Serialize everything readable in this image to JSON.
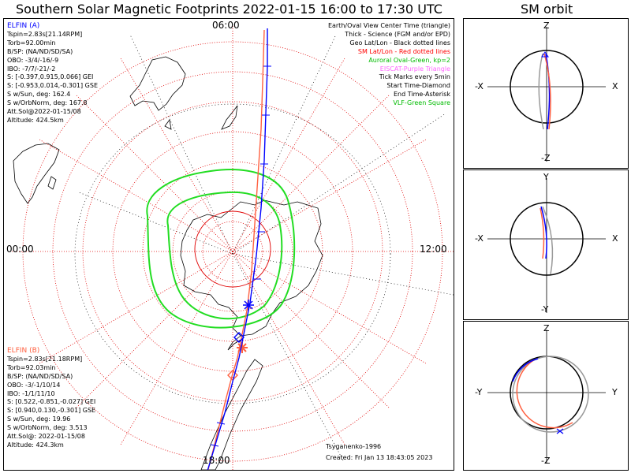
{
  "title": "Southern Solar Magnetic Footprints 2022-01-15 16:00 to 17:30 UTC",
  "orbit_title": "SM orbit",
  "clock_labels": {
    "top": "06:00",
    "bottom": "18:00",
    "left": "00:00",
    "right": "12:00"
  },
  "elfin_a": {
    "name": "ELFIN (A)",
    "color": "#0000ff",
    "lines": [
      "Tspin=2.83s[21.14RPM]",
      "Torb=92.00min",
      "B/SP: (NA/ND/SD/SA)",
      "OBO: -3/4/-16/-9",
      "IBO: -7/7/-21/-2",
      "S: [-0.397,0.915,0.066] GEI",
      "S: [-0.953,0.014,-0.301] GSE",
      "S w/Sun, deg: 162.4",
      "S w/OrbNorm, deg: 167.8",
      "Att.Sol@2022-01-15/08",
      "Altitude: 424.5km"
    ]
  },
  "elfin_b": {
    "name": "ELFIN (B)",
    "color": "#ff6040",
    "lines": [
      "Tspin=2.83s[21.18RPM]",
      "Torb=92.03min",
      "B/SP: (NA/ND/SD/SA)",
      "OBO: -3/-1/10/14",
      "IBO: -1/1/11/10",
      "S: [0.522,-0.851,-0.027] GEI",
      "S: [0.940,0.130,-0.301] GSE",
      "S w/Sun, deg: 19.96",
      "S w/OrbNorm, deg: 3.513",
      "Att.Sol@: 2022-01-15/08",
      "Altitude: 424.3km"
    ]
  },
  "legend": [
    {
      "text": "Earth/Oval View Center Time (triangle)",
      "color": "#000000"
    },
    {
      "text": "Thick - Science (FGM and/or EPD)",
      "color": "#000000"
    },
    {
      "text": "Geo Lat/Lon - Black dotted lines",
      "color": "#000000"
    },
    {
      "text": "SM Lat/Lon - Red dotted lines",
      "color": "#ff0000"
    },
    {
      "text": "Auroral Oval-Green, kp=2",
      "color": "#00bb00"
    },
    {
      "text": "EISCAT-Purple Triangle",
      "color": "#ff66ff"
    },
    {
      "text": "Tick Marks every 5min",
      "color": "#000000"
    },
    {
      "text": "Start Time-Diamond",
      "color": "#000000"
    },
    {
      "text": "End Time-Asterisk",
      "color": "#000000"
    },
    {
      "text": "VLF-Green Square",
      "color": "#00bb00"
    }
  ],
  "footer": {
    "model": "Tsyganenko-1996",
    "created": "Created: Fri Jan 13 18:43:05 2023"
  },
  "orbit_panels": [
    {
      "top": "Z",
      "bottom": "-Z",
      "left": "-X",
      "right": "X"
    },
    {
      "top": "Y",
      "bottom": "-Y",
      "left": "-X",
      "right": "X"
    },
    {
      "top": "Z",
      "bottom": "-Z",
      "left": "-Y",
      "right": "Y"
    }
  ]
}
